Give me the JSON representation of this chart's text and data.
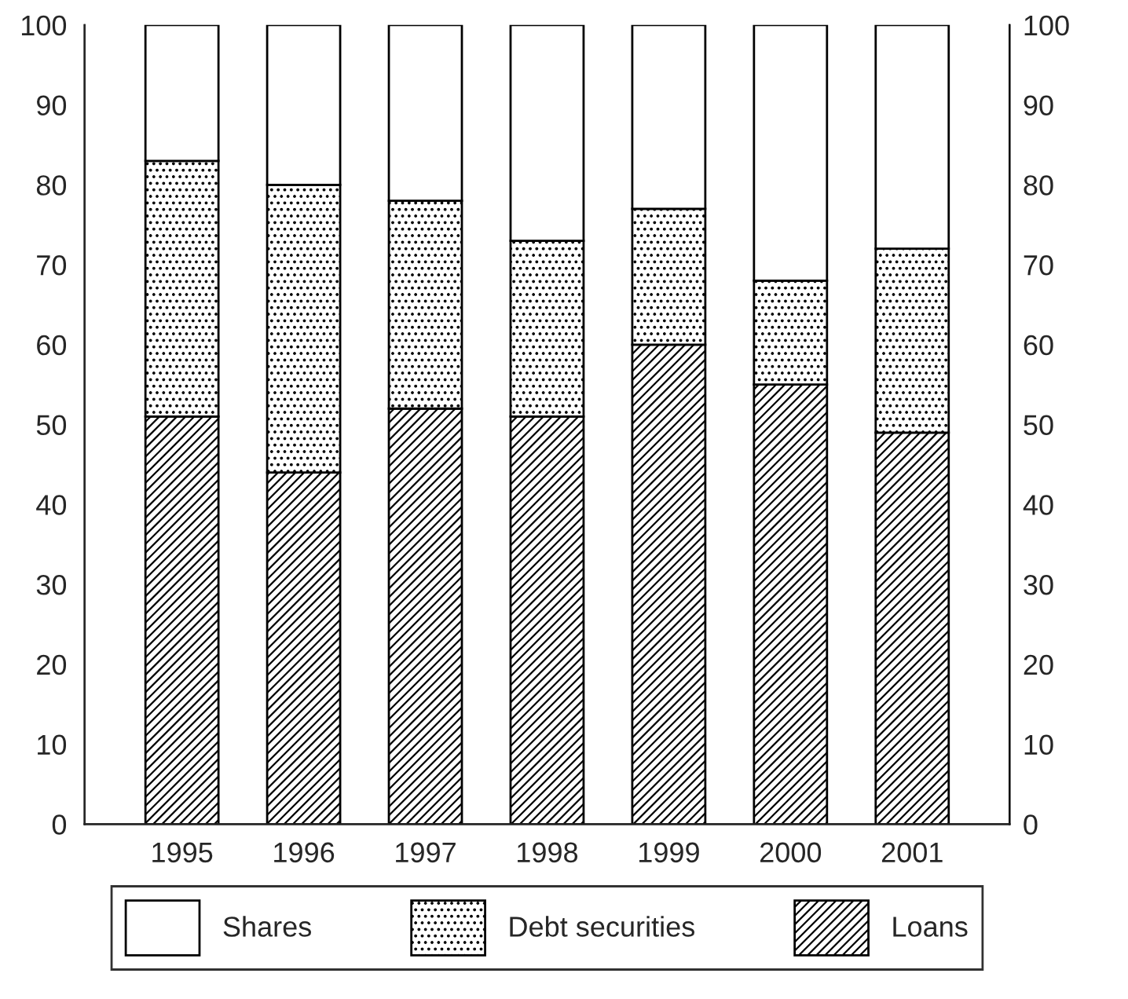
{
  "chart_data": {
    "type": "bar",
    "stacked": true,
    "categories": [
      "1995",
      "1996",
      "1997",
      "1998",
      "1999",
      "2000",
      "2001"
    ],
    "series": [
      {
        "name": "Loans",
        "color": "#000000",
        "values": [
          51,
          44,
          52,
          51,
          60,
          55,
          49
        ]
      },
      {
        "name": "Debt securities",
        "color": "#000000",
        "values": [
          32,
          36,
          26,
          22,
          17,
          13,
          23
        ]
      },
      {
        "name": "Shares",
        "color": "#ffffff",
        "values": [
          17,
          20,
          22,
          27,
          23,
          32,
          28
        ]
      }
    ],
    "ylim": [
      0,
      100
    ],
    "yticks": [
      0,
      10,
      20,
      30,
      40,
      50,
      60,
      70,
      80,
      90,
      100
    ],
    "y2lim": [
      0,
      100
    ],
    "y2ticks": [
      0,
      10,
      20,
      30,
      40,
      50,
      60,
      70,
      80,
      90,
      100
    ],
    "grid": false,
    "legend": "bottom"
  }
}
